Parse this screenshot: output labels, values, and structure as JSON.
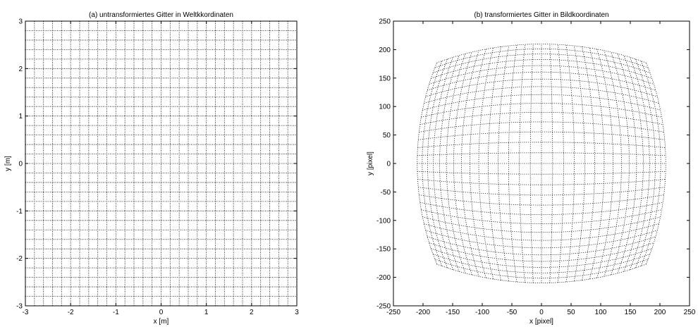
{
  "chart_data": [
    {
      "type": "grid",
      "title": "(a) untransformiertes Gitter in Weltkkordinaten",
      "xlabel": "x [m]",
      "ylabel": "y [m]",
      "xlim": [
        -3,
        3
      ],
      "ylim": [
        -3,
        3
      ],
      "xticks": [
        -3,
        -2,
        -1,
        0,
        1,
        2,
        3
      ],
      "yticks": [
        -3,
        -2,
        -1,
        0,
        1,
        2,
        3
      ],
      "grid_spacing": 0.2,
      "line_style": "dotted",
      "color": "#000000"
    },
    {
      "type": "distorted-grid",
      "title": "(b) transformiertes Gitter in Bildkoordinaten",
      "xlabel": "x [pixel]",
      "ylabel": "y [pixel]",
      "xlim": [
        -250,
        250
      ],
      "ylim": [
        -250,
        250
      ],
      "xticks": [
        -250,
        -200,
        -150,
        -100,
        -50,
        0,
        50,
        100,
        150,
        200,
        250
      ],
      "yticks": [
        -250,
        -200,
        -150,
        -100,
        -50,
        0,
        50,
        100,
        150,
        200,
        250
      ],
      "source_grid_lim": [
        -3,
        3
      ],
      "source_grid_spacing": 0.2,
      "line_style": "dotted",
      "color": "#000000"
    }
  ]
}
